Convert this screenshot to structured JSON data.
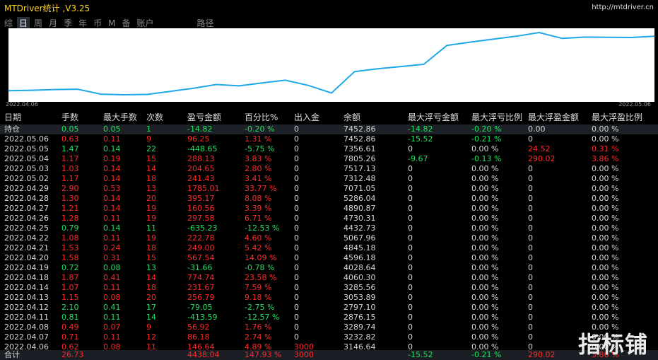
{
  "window": {
    "title": "MTDriver统计 ,V3.25",
    "url": "http://mtdriver.cn"
  },
  "tabs": [
    {
      "label": "综",
      "active": false
    },
    {
      "label": "日",
      "active": true
    },
    {
      "label": "周",
      "active": false
    },
    {
      "label": "月",
      "active": false
    },
    {
      "label": "季",
      "active": false
    },
    {
      "label": "年",
      "active": false
    },
    {
      "label": "币",
      "active": false
    },
    {
      "label": "M",
      "active": false
    },
    {
      "label": "备",
      "active": false
    },
    {
      "label": "账户",
      "active": false
    },
    {
      "label": "路径",
      "active": false
    }
  ],
  "chart": {
    "start_label": "2022.04.06",
    "end_label": "2022.05.06",
    "line_color": "#1fa8e8",
    "equity": [
      146.64,
      189.08,
      245.64,
      277.27,
      -136.32,
      -187.98,
      -156.32,
      94.47,
      351.15,
      664.79,
      555.31,
      802.86,
      1024.29,
      588.46,
      -42.77,
      1738.01,
      1977.56,
      2162.21,
      2355.76,
      3920.04,
      4199.45,
      4446.71,
      4691.12,
      5001.86,
      4510.15,
      4624.09,
      4602.11,
      4588.5,
      4688.43
    ]
  },
  "columns": [
    "日期",
    "手数",
    "最大手数",
    "次数",
    "盈亏金额",
    "百分比%",
    "出入金",
    "余额",
    "最大浮亏金额",
    "最大浮亏比例",
    "最大浮盈金额",
    "最大浮盈比例"
  ],
  "rows": [
    {
      "c": [
        "持仓",
        "0.05",
        "0.05",
        "1",
        "-14.82",
        "-0.20 %",
        "0",
        "7452.86",
        "-14.82",
        "-0.20 %",
        "0.00",
        "0.00 %"
      ],
      "t": [
        "neu",
        "neg",
        "neg",
        "neg",
        "neg",
        "neg",
        "neu",
        "neu",
        "neg",
        "neg",
        "neu",
        "neu"
      ]
    },
    {
      "c": [
        "2022.05.06",
        "0.63",
        "0.11",
        "9",
        "96.25",
        "1.31 %",
        "0",
        "7452.86",
        "-15.52",
        "-0.21 %",
        "0",
        "0.00 %"
      ],
      "t": [
        "neu",
        "pos",
        "pos",
        "pos",
        "pos",
        "pos",
        "neu",
        "neu",
        "neg",
        "neg",
        "neu",
        "neu"
      ]
    },
    {
      "c": [
        "2022.05.05",
        "1.47",
        "0.14",
        "22",
        "-448.65",
        "-5.75 %",
        "0",
        "7356.61",
        "0",
        "0.00 %",
        "24.52",
        "0.31 %"
      ],
      "t": [
        "neu",
        "neg",
        "neg",
        "neg",
        "neg",
        "neg",
        "neu",
        "neu",
        "neu",
        "neu",
        "pos",
        "pos"
      ]
    },
    {
      "c": [
        "2022.05.04",
        "1.17",
        "0.19",
        "15",
        "288.13",
        "3.83 %",
        "0",
        "7805.26",
        "-9.67",
        "-0.13 %",
        "290.02",
        "3.86 %"
      ],
      "t": [
        "neu",
        "pos",
        "pos",
        "pos",
        "pos",
        "pos",
        "neu",
        "neu",
        "neg",
        "neg",
        "pos",
        "pos"
      ]
    },
    {
      "c": [
        "2022.05.03",
        "1.03",
        "0.14",
        "14",
        "204.65",
        "2.80 %",
        "0",
        "7517.13",
        "0",
        "0.00 %",
        "0",
        "0.00 %"
      ],
      "t": [
        "neu",
        "pos",
        "pos",
        "pos",
        "pos",
        "pos",
        "neu",
        "neu",
        "neu",
        "neu",
        "neu",
        "neu"
      ]
    },
    {
      "c": [
        "2022.05.02",
        "1.17",
        "0.14",
        "18",
        "241.43",
        "3.41 %",
        "0",
        "7312.48",
        "0",
        "0.00 %",
        "0",
        "0.00 %"
      ],
      "t": [
        "neu",
        "pos",
        "pos",
        "pos",
        "pos",
        "pos",
        "neu",
        "neu",
        "neu",
        "neu",
        "neu",
        "neu"
      ]
    },
    {
      "c": [
        "2022.04.29",
        "2.90",
        "0.53",
        "13",
        "1785.01",
        "33.77 %",
        "0",
        "7071.05",
        "0",
        "0.00 %",
        "0",
        "0.00 %"
      ],
      "t": [
        "neu",
        "pos",
        "pos",
        "pos",
        "pos",
        "pos",
        "neu",
        "neu",
        "neu",
        "neu",
        "neu",
        "neu"
      ]
    },
    {
      "c": [
        "2022.04.28",
        "1.30",
        "0.14",
        "20",
        "395.17",
        "8.08 %",
        "0",
        "5286.04",
        "0",
        "0.00 %",
        "0",
        "0.00 %"
      ],
      "t": [
        "neu",
        "pos",
        "pos",
        "pos",
        "pos",
        "pos",
        "neu",
        "neu",
        "neu",
        "neu",
        "neu",
        "neu"
      ]
    },
    {
      "c": [
        "2022.04.27",
        "1.21",
        "0.14",
        "19",
        "160.56",
        "3.39 %",
        "0",
        "4890.87",
        "0",
        "0.00 %",
        "0",
        "0.00 %"
      ],
      "t": [
        "neu",
        "pos",
        "pos",
        "pos",
        "pos",
        "pos",
        "neu",
        "neu",
        "neu",
        "neu",
        "neu",
        "neu"
      ]
    },
    {
      "c": [
        "2022.04.26",
        "1.28",
        "0.11",
        "19",
        "297.58",
        "6.71 %",
        "0",
        "4730.31",
        "0",
        "0.00 %",
        "0",
        "0.00 %"
      ],
      "t": [
        "neu",
        "pos",
        "pos",
        "pos",
        "pos",
        "pos",
        "neu",
        "neu",
        "neu",
        "neu",
        "neu",
        "neu"
      ]
    },
    {
      "c": [
        "2022.04.25",
        "0.79",
        "0.14",
        "11",
        "-635.23",
        "-12.53 %",
        "0",
        "4432.73",
        "0",
        "0.00 %",
        "0",
        "0.00 %"
      ],
      "t": [
        "neu",
        "neg",
        "neg",
        "neg",
        "neg",
        "neg",
        "neu",
        "neu",
        "neu",
        "neu",
        "neu",
        "neu"
      ]
    },
    {
      "c": [
        "2022.04.22",
        "1.08",
        "0.11",
        "19",
        "222.78",
        "4.60 %",
        "0",
        "5067.96",
        "0",
        "0.00 %",
        "0",
        "0.00 %"
      ],
      "t": [
        "neu",
        "pos",
        "pos",
        "pos",
        "pos",
        "pos",
        "neu",
        "neu",
        "neu",
        "neu",
        "neu",
        "neu"
      ]
    },
    {
      "c": [
        "2022.04.21",
        "1.53",
        "0.24",
        "18",
        "249.00",
        "5.42 %",
        "0",
        "4845.18",
        "0",
        "0.00 %",
        "0",
        "0.00 %"
      ],
      "t": [
        "neu",
        "pos",
        "pos",
        "pos",
        "pos",
        "pos",
        "neu",
        "neu",
        "neu",
        "neu",
        "neu",
        "neu"
      ]
    },
    {
      "c": [
        "2022.04.20",
        "1.58",
        "0.31",
        "15",
        "567.54",
        "14.09 %",
        "0",
        "4596.18",
        "0",
        "0.00 %",
        "0",
        "0.00 %"
      ],
      "t": [
        "neu",
        "pos",
        "pos",
        "pos",
        "pos",
        "pos",
        "neu",
        "neu",
        "neu",
        "neu",
        "neu",
        "neu"
      ]
    },
    {
      "c": [
        "2022.04.19",
        "0.72",
        "0.08",
        "13",
        "-31.66",
        "-0.78 %",
        "0",
        "4028.64",
        "0",
        "0.00 %",
        "0",
        "0.00 %"
      ],
      "t": [
        "neu",
        "neg",
        "neg",
        "neg",
        "neg",
        "neg",
        "neu",
        "neu",
        "neu",
        "neu",
        "neu",
        "neu"
      ]
    },
    {
      "c": [
        "2022.04.18",
        "1.87",
        "0.41",
        "14",
        "774.74",
        "23.58 %",
        "0",
        "4060.30",
        "0",
        "0.00 %",
        "0",
        "0.00 %"
      ],
      "t": [
        "neu",
        "pos",
        "pos",
        "pos",
        "pos",
        "pos",
        "neu",
        "neu",
        "neu",
        "neu",
        "neu",
        "neu"
      ]
    },
    {
      "c": [
        "2022.04.14",
        "1.07",
        "0.11",
        "18",
        "231.67",
        "7.59 %",
        "0",
        "3285.56",
        "0",
        "0.00 %",
        "0",
        "0.00 %"
      ],
      "t": [
        "neu",
        "pos",
        "pos",
        "pos",
        "pos",
        "pos",
        "neu",
        "neu",
        "neu",
        "neu",
        "neu",
        "neu"
      ]
    },
    {
      "c": [
        "2022.04.13",
        "1.15",
        "0.08",
        "20",
        "256.79",
        "9.18 %",
        "0",
        "3053.89",
        "0",
        "0.00 %",
        "0",
        "0.00 %"
      ],
      "t": [
        "neu",
        "pos",
        "pos",
        "pos",
        "pos",
        "pos",
        "neu",
        "neu",
        "neu",
        "neu",
        "neu",
        "neu"
      ]
    },
    {
      "c": [
        "2022.04.12",
        "2.10",
        "0.41",
        "17",
        "-79.05",
        "-2.75 %",
        "0",
        "2797.10",
        "0",
        "0.00 %",
        "0",
        "0.00 %"
      ],
      "t": [
        "neu",
        "neg",
        "neg",
        "neg",
        "neg",
        "neg",
        "neu",
        "neu",
        "neu",
        "neu",
        "neu",
        "neu"
      ]
    },
    {
      "c": [
        "2022.04.11",
        "0.81",
        "0.11",
        "14",
        "-413.59",
        "-12.57 %",
        "0",
        "2876.15",
        "0",
        "0.00 %",
        "0",
        "0.00 %"
      ],
      "t": [
        "neu",
        "neg",
        "neg",
        "neg",
        "neg",
        "neg",
        "neu",
        "neu",
        "neu",
        "neu",
        "neu",
        "neu"
      ]
    },
    {
      "c": [
        "2022.04.08",
        "0.49",
        "0.07",
        "9",
        "56.92",
        "1.76 %",
        "0",
        "3289.74",
        "0",
        "0.00 %",
        "0",
        "0.00 %"
      ],
      "t": [
        "neu",
        "pos",
        "pos",
        "pos",
        "pos",
        "pos",
        "neu",
        "neu",
        "neu",
        "neu",
        "neu",
        "neu"
      ]
    },
    {
      "c": [
        "2022.04.07",
        "0.71",
        "0.11",
        "12",
        "86.18",
        "2.74 %",
        "0",
        "3232.82",
        "0",
        "0.00 %",
        "0",
        "0.00 %"
      ],
      "t": [
        "neu",
        "pos",
        "pos",
        "pos",
        "pos",
        "pos",
        "neu",
        "neu",
        "neu",
        "neu",
        "neu",
        "neu"
      ]
    },
    {
      "c": [
        "2022.04.06",
        "0.62",
        "0.08",
        "11",
        "146.64",
        "4.89 %",
        "3000",
        "3146.64",
        "0",
        "0.00 %",
        "0",
        "0.00 %"
      ],
      "t": [
        "neu",
        "pos",
        "pos",
        "pos",
        "pos",
        "pos",
        "pos",
        "neu",
        "neu",
        "neu",
        "neu",
        "neu"
      ]
    }
  ],
  "total": {
    "c": [
      "合计",
      "26.73",
      "",
      "",
      "4438.04",
      "147.93 %",
      "3000",
      "",
      "-15.52",
      "-0.21 %",
      "290.02",
      "3.86 %"
    ],
    "t": [
      "neu",
      "pos",
      "neu",
      "neu",
      "pos",
      "pos",
      "pos",
      "neu",
      "neg",
      "neg",
      "pos",
      "pos"
    ]
  },
  "watermark": "指标铺",
  "colors": {
    "positive": "#ff2a2a",
    "negative": "#20e060",
    "title": "#ffd21e",
    "background": "#000000"
  }
}
